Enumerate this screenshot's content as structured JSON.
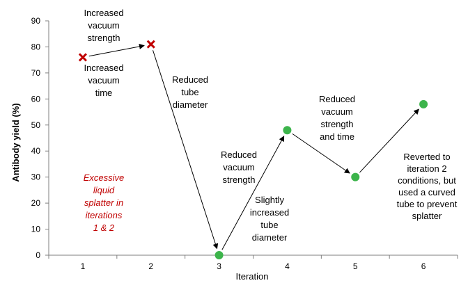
{
  "chart_data": {
    "type": "scatter",
    "title": "",
    "xlabel": "Iteration",
    "ylabel": "Antibody yield (%)",
    "xlim": [
      0.5,
      6.5
    ],
    "ylim": [
      0,
      90
    ],
    "x_ticks": [
      "1",
      "2",
      "3",
      "4",
      "5",
      "6"
    ],
    "y_ticks": [
      "0",
      "10",
      "20",
      "30",
      "40",
      "50",
      "60",
      "70",
      "80",
      "90"
    ],
    "grid": false,
    "points": [
      {
        "x": 1,
        "y": 76,
        "marker": "x",
        "color": "#c00000"
      },
      {
        "x": 2,
        "y": 81,
        "marker": "x",
        "color": "#c00000"
      },
      {
        "x": 3,
        "y": 0,
        "marker": "circle",
        "color": "#3cb44b"
      },
      {
        "x": 4,
        "y": 48,
        "marker": "circle",
        "color": "#3cb44b"
      },
      {
        "x": 5,
        "y": 30,
        "marker": "circle",
        "color": "#3cb44b"
      },
      {
        "x": 6,
        "y": 58,
        "marker": "circle",
        "color": "#3cb44b"
      }
    ],
    "annotations": [
      {
        "lines": [
          "Increased",
          "vacuum",
          "strength"
        ]
      },
      {
        "lines": [
          "Increased",
          "vacuum",
          "time"
        ]
      },
      {
        "lines": [
          "Reduced",
          "tube",
          "diameter"
        ]
      },
      {
        "lines": [
          "Reduced",
          "vacuum",
          "strength"
        ]
      },
      {
        "lines": [
          "Slightly",
          "increased",
          "tube",
          "diameter"
        ]
      },
      {
        "lines": [
          "Reduced",
          "vacuum",
          "strength",
          "and time"
        ]
      },
      {
        "lines": [
          "Reverted to",
          "iteration 2",
          "conditions, but",
          "used a curved",
          "tube to prevent",
          "splatter"
        ]
      },
      {
        "lines": [
          "Excessive",
          "liquid",
          "splatter in",
          "iterations",
          "1 & 2"
        ],
        "color": "#c00000",
        "italic": true
      }
    ]
  }
}
